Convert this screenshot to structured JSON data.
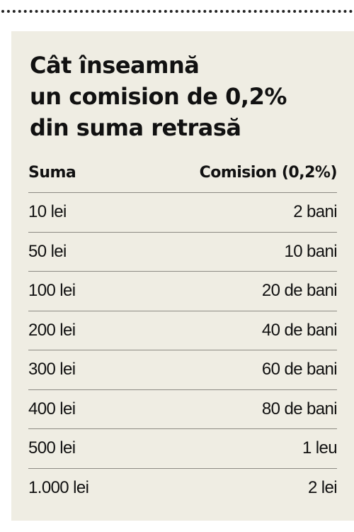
{
  "title": {
    "line1": "Cât înseamnă",
    "line2": "un comision de 0,2%",
    "line3": "din suma retrasă"
  },
  "table": {
    "headers": [
      "Suma",
      "Comision (0,2%)"
    ],
    "rows": [
      [
        "10 lei",
        "2 bani"
      ],
      [
        "50 lei",
        "10 bani"
      ],
      [
        "100 lei",
        "20 de bani"
      ],
      [
        "200 lei",
        "40 de bani"
      ],
      [
        "300 lei",
        "60 de bani"
      ],
      [
        "400 lei",
        "80 de bani"
      ],
      [
        "500 lei",
        "1 leu"
      ],
      [
        "1.000 lei",
        "2 lei"
      ]
    ]
  },
  "colors": {
    "panel_background": "#efede3",
    "text": "#111111",
    "row_divider": "#8c8a83",
    "dotted_rule": "#222222"
  }
}
